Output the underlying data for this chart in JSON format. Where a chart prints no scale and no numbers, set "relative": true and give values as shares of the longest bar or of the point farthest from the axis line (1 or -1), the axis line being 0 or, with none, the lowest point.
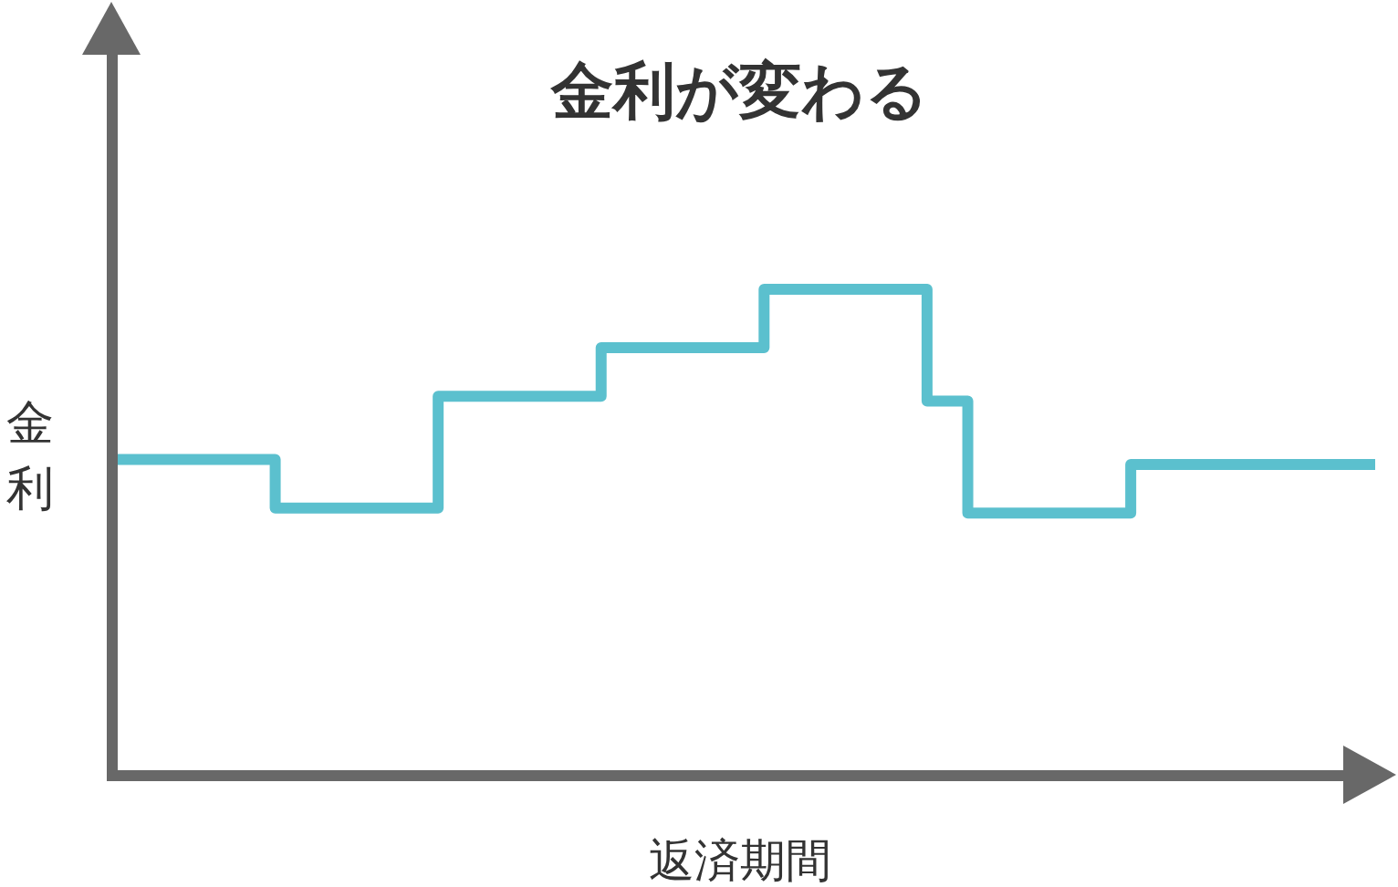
{
  "chart_data": {
    "type": "step",
    "title": "金利が変わる",
    "xlabel": "返済期間",
    "ylabel": "金利",
    "relative": true,
    "grid": false,
    "color": "#5bc0ce",
    "categories": [
      null,
      null,
      null,
      null,
      null,
      null,
      null,
      null,
      null,
      null,
      null,
      null,
      null,
      null,
      null,
      null,
      null,
      null,
      null,
      null,
      null,
      null,
      null,
      null,
      null,
      null,
      null,
      null,
      null,
      null,
      null,
      null
    ],
    "values": [
      0.65,
      0.65,
      0.65,
      0.65,
      0.55,
      0.55,
      0.55,
      0.55,
      0.78,
      0.78,
      0.78,
      0.78,
      0.88,
      0.88,
      0.88,
      0.88,
      1,
      1,
      1,
      1,
      0.77,
      0.54,
      0.54,
      0.54,
      0.54,
      0.64,
      0.64,
      0.64,
      0.64,
      0.64,
      0.64,
      0.64
    ]
  }
}
